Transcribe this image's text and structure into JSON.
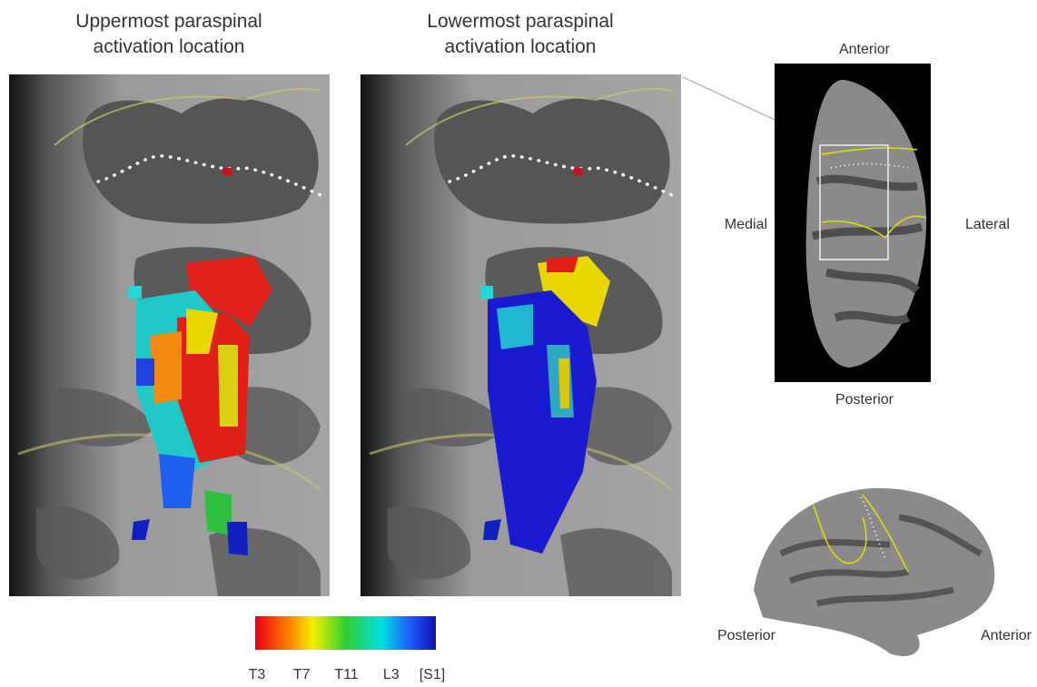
{
  "panels": [
    {
      "title_lines": [
        "Uppermost paraspinal",
        "activation location"
      ]
    },
    {
      "title_lines": [
        "Lowermost paraspinal",
        "activation location"
      ]
    }
  ],
  "top_view": {
    "anterior": "Anterior",
    "posterior": "Posterior",
    "medial": "Medial",
    "lateral": "Lateral"
  },
  "lateral_view": {
    "posterior": "Posterior",
    "anterior": "Anterior"
  },
  "colorbar": {
    "labels": [
      "T3",
      "T7",
      "T11",
      "L3",
      "[S1]"
    ]
  }
}
